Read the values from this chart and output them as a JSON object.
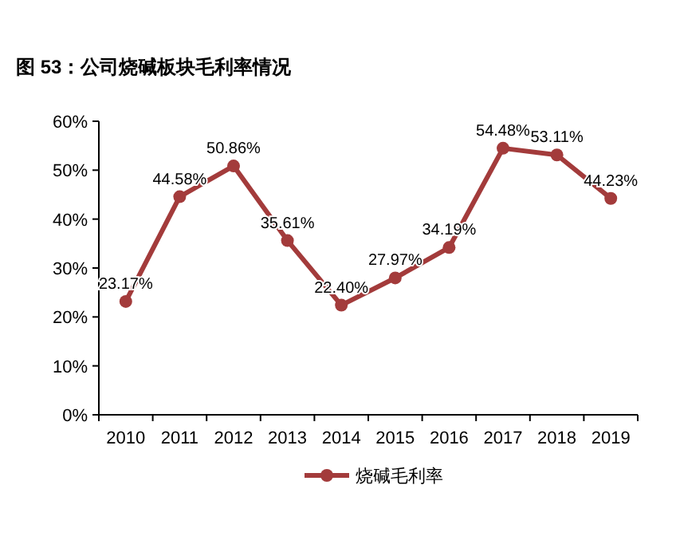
{
  "chart_data": {
    "type": "line",
    "title": "图 53：公司烧碱板块毛利率情况",
    "categories": [
      "2010",
      "2011",
      "2012",
      "2013",
      "2014",
      "2015",
      "2016",
      "2017",
      "2018",
      "2019"
    ],
    "series": [
      {
        "name": "烧碱毛利率",
        "color": "#a33b3b",
        "values": [
          23.17,
          44.58,
          50.86,
          35.61,
          22.4,
          27.97,
          34.19,
          54.48,
          53.11,
          44.23
        ]
      }
    ],
    "value_labels": [
      "23.17%",
      "44.58%",
      "50.86%",
      "35.61%",
      "22.40%",
      "27.97%",
      "34.19%",
      "54.48%",
      "53.11%",
      "44.23%"
    ],
    "ylim": [
      0,
      60
    ],
    "yticks": [
      {
        "value": 0,
        "label": "0%"
      },
      {
        "value": 10,
        "label": "10%"
      },
      {
        "value": 20,
        "label": "20%"
      },
      {
        "value": 30,
        "label": "30%"
      },
      {
        "value": 40,
        "label": "40%"
      },
      {
        "value": 50,
        "label": "50%"
      },
      {
        "value": 60,
        "label": "60%"
      }
    ],
    "marker": "circle",
    "legend": "bottom",
    "grid": false
  }
}
